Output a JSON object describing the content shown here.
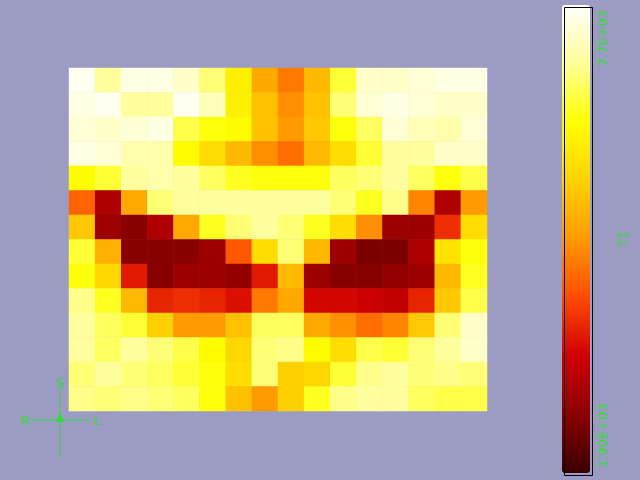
{
  "chart_data": {
    "type": "heatmap",
    "tick_labels": false,
    "cells": [
      [
        7600,
        7000,
        7500,
        7500,
        7300,
        6800,
        6000,
        5000,
        4500,
        5200,
        6500,
        7300,
        7300,
        7400,
        7500,
        7500
      ],
      [
        7500,
        7600,
        7000,
        7000,
        7600,
        7200,
        6000,
        5300,
        4700,
        5300,
        6800,
        7400,
        7500,
        7400,
        7300,
        7300
      ],
      [
        7400,
        7300,
        7400,
        7500,
        6600,
        6300,
        6200,
        5300,
        4800,
        5400,
        6300,
        6700,
        7400,
        7200,
        7100,
        7400
      ],
      [
        7500,
        7400,
        7100,
        7100,
        6200,
        5700,
        5200,
        4700,
        4400,
        5200,
        5700,
        6500,
        7000,
        7000,
        7300,
        7300
      ],
      [
        6200,
        6500,
        7000,
        7100,
        7000,
        6700,
        6400,
        6300,
        6300,
        6300,
        6700,
        6800,
        7000,
        6700,
        6300,
        6600
      ],
      [
        4300,
        3000,
        5000,
        6800,
        7000,
        7000,
        7000,
        7000,
        7000,
        7000,
        6800,
        6400,
        6900,
        4600,
        3000,
        4800
      ],
      [
        5400,
        2800,
        2600,
        3000,
        5000,
        6400,
        6800,
        7000,
        6800,
        6400,
        5700,
        4700,
        2800,
        2800,
        3800,
        5700
      ],
      [
        6500,
        5100,
        2600,
        2600,
        2600,
        2800,
        4200,
        5700,
        6800,
        5200,
        2800,
        2500,
        2500,
        3000,
        5800,
        6300
      ],
      [
        6300,
        5600,
        3600,
        2600,
        2800,
        2800,
        2700,
        3600,
        5200,
        2800,
        2600,
        2600,
        2700,
        2800,
        5200,
        6400
      ],
      [
        6900,
        6400,
        5200,
        3700,
        3800,
        3700,
        3500,
        4500,
        5000,
        3400,
        3400,
        3300,
        3200,
        3700,
        5400,
        6600
      ],
      [
        7000,
        6700,
        6500,
        5500,
        4800,
        4800,
        5300,
        6700,
        6700,
        5000,
        4700,
        4400,
        4600,
        5400,
        6800,
        7300
      ],
      [
        7000,
        6700,
        7000,
        6800,
        6600,
        6200,
        5600,
        6800,
        6900,
        6200,
        5700,
        6600,
        6500,
        6800,
        7000,
        7300
      ],
      [
        6800,
        7000,
        6800,
        6700,
        6500,
        6300,
        5700,
        6800,
        5500,
        5600,
        6500,
        6900,
        7000,
        6800,
        6900,
        6800
      ],
      [
        6900,
        6800,
        6900,
        6800,
        6700,
        6300,
        5300,
        4800,
        5500,
        6400,
        6900,
        7000,
        7000,
        6700,
        6600,
        6600
      ]
    ],
    "colorbar": {
      "title": "T1",
      "range": [
        1900,
        7700
      ],
      "ticks": [
        {
          "value": 1900,
          "label": "1.90E+03"
        },
        {
          "value": 7700,
          "label": "7.7E+03"
        }
      ]
    },
    "annotations": [
      "S",
      "R",
      "L"
    ]
  }
}
